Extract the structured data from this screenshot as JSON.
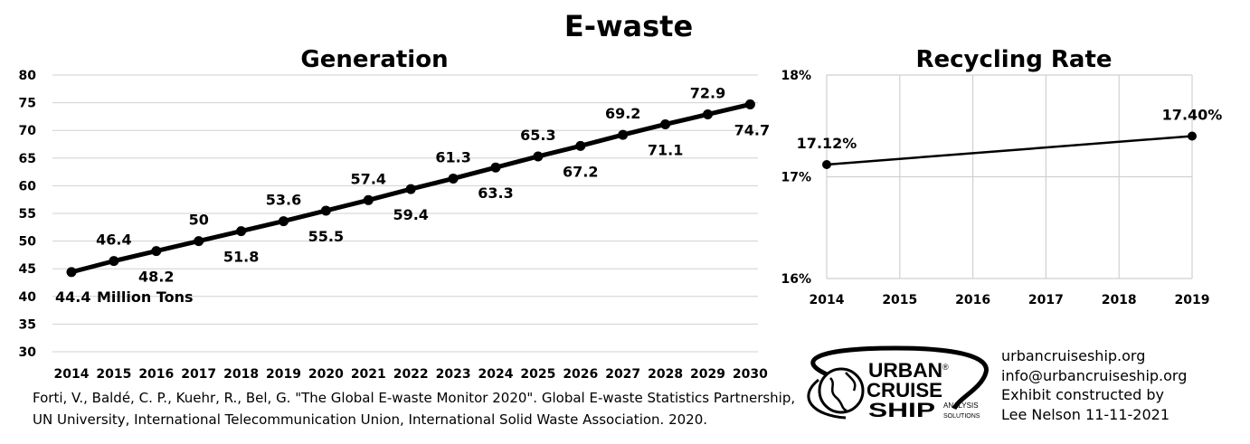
{
  "title": "E-waste",
  "chart_data": [
    {
      "type": "line",
      "title": "Generation",
      "x": [
        "2014",
        "2015",
        "2016",
        "2017",
        "2018",
        "2019",
        "2020",
        "2021",
        "2022",
        "2023",
        "2024",
        "2025",
        "2026",
        "2027",
        "2028",
        "2029",
        "2030"
      ],
      "values": [
        44.4,
        46.4,
        48.2,
        50,
        51.8,
        53.6,
        55.5,
        57.4,
        59.4,
        61.3,
        63.3,
        65.3,
        67.2,
        69.2,
        71.1,
        72.9,
        74.7
      ],
      "labels": [
        "44.4",
        "46.4",
        "48.2",
        "50",
        "51.8",
        "53.6",
        "55.5",
        "57.4",
        "59.4",
        "61.3",
        "63.3",
        "65.3",
        "67.2",
        "69.2",
        "71.1",
        "72.9",
        "74.7"
      ],
      "unit_annotation": "Million Tons",
      "yticks": [
        "30",
        "35",
        "40",
        "45",
        "50",
        "55",
        "60",
        "65",
        "70",
        "75",
        "80"
      ],
      "ylim": [
        30,
        80
      ],
      "grid": "horizontal",
      "line_color": "#000000"
    },
    {
      "type": "line",
      "title": "Recycling Rate",
      "x": [
        "2014",
        "2015",
        "2016",
        "2017",
        "2018",
        "2019"
      ],
      "points": [
        {
          "x": "2014",
          "y": 17.12,
          "label": "17.12%"
        },
        {
          "x": "2019",
          "y": 17.4,
          "label": "17.40%"
        }
      ],
      "yticks": [
        "16%",
        "17%",
        "18%"
      ],
      "ylim": [
        16,
        18
      ],
      "grid": "both",
      "line_color": "#000000"
    }
  ],
  "source": {
    "line1": "Forti, V., Baldé, C. P., Kuehr, R., Bel, G. \"The Global E-waste Monitor 2020\". Global E-waste Statistics Partnership,",
    "line2": "UN University, International Telecommunication Union, International Solid Waste Association. 2020."
  },
  "logo": {
    "word1": "URBAN",
    "word2": "CRUISE",
    "word3": "SHIP",
    "sub1": "ANALYSIS",
    "sub2": "SOLUTIONS",
    "reg": "®"
  },
  "contact": {
    "website": "urbancruiseship.org",
    "email": "info@urbancruiseship.org",
    "credit1": "Exhibit constructed by",
    "credit2": "Lee Nelson 11-11-2021"
  }
}
